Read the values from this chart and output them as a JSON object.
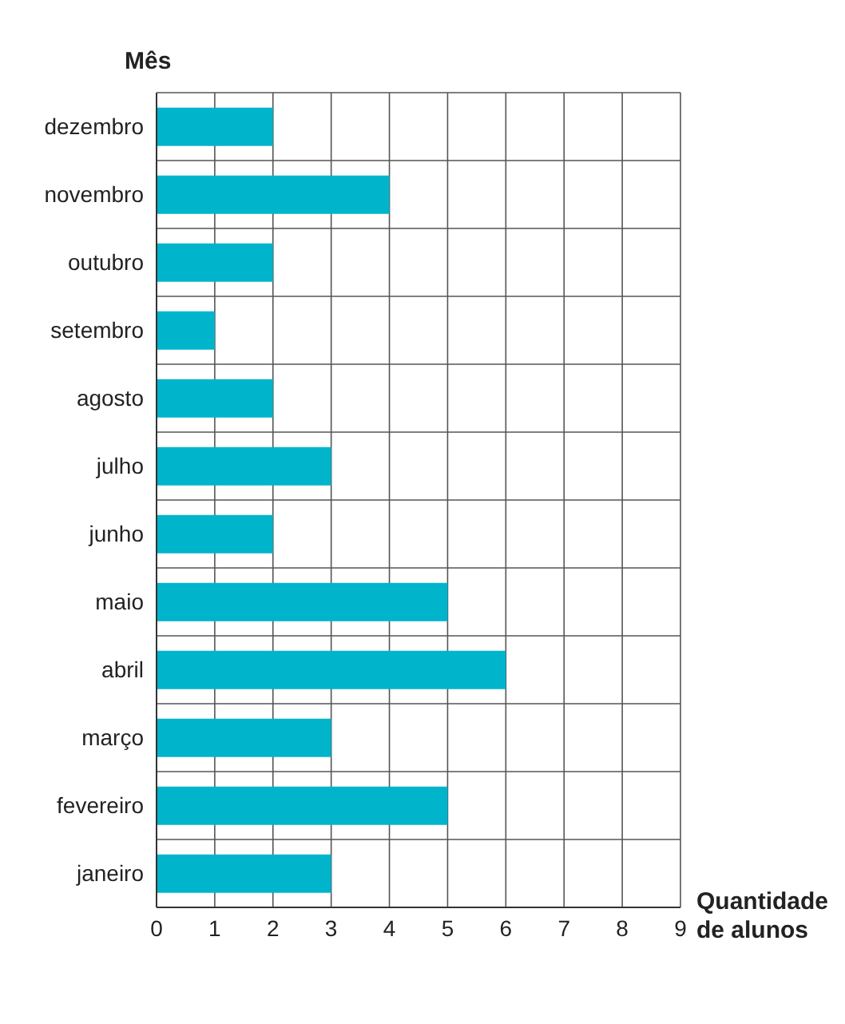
{
  "chart_data": {
    "type": "bar",
    "orientation": "horizontal",
    "ylabel": "Mês",
    "xlabel": "Quantidade de alunos",
    "categories": [
      "dezembro",
      "novembro",
      "outubro",
      "setembro",
      "agosto",
      "julho",
      "junho",
      "maio",
      "abril",
      "março",
      "fevereiro",
      "janeiro"
    ],
    "values": [
      2,
      4,
      2,
      1,
      2,
      3,
      2,
      5,
      6,
      3,
      5,
      3
    ],
    "color": "#00b4cc",
    "xlim": [
      0,
      9
    ],
    "xticks": [
      0,
      1,
      2,
      3,
      4,
      5,
      6,
      7,
      8,
      9
    ],
    "grid": true
  }
}
